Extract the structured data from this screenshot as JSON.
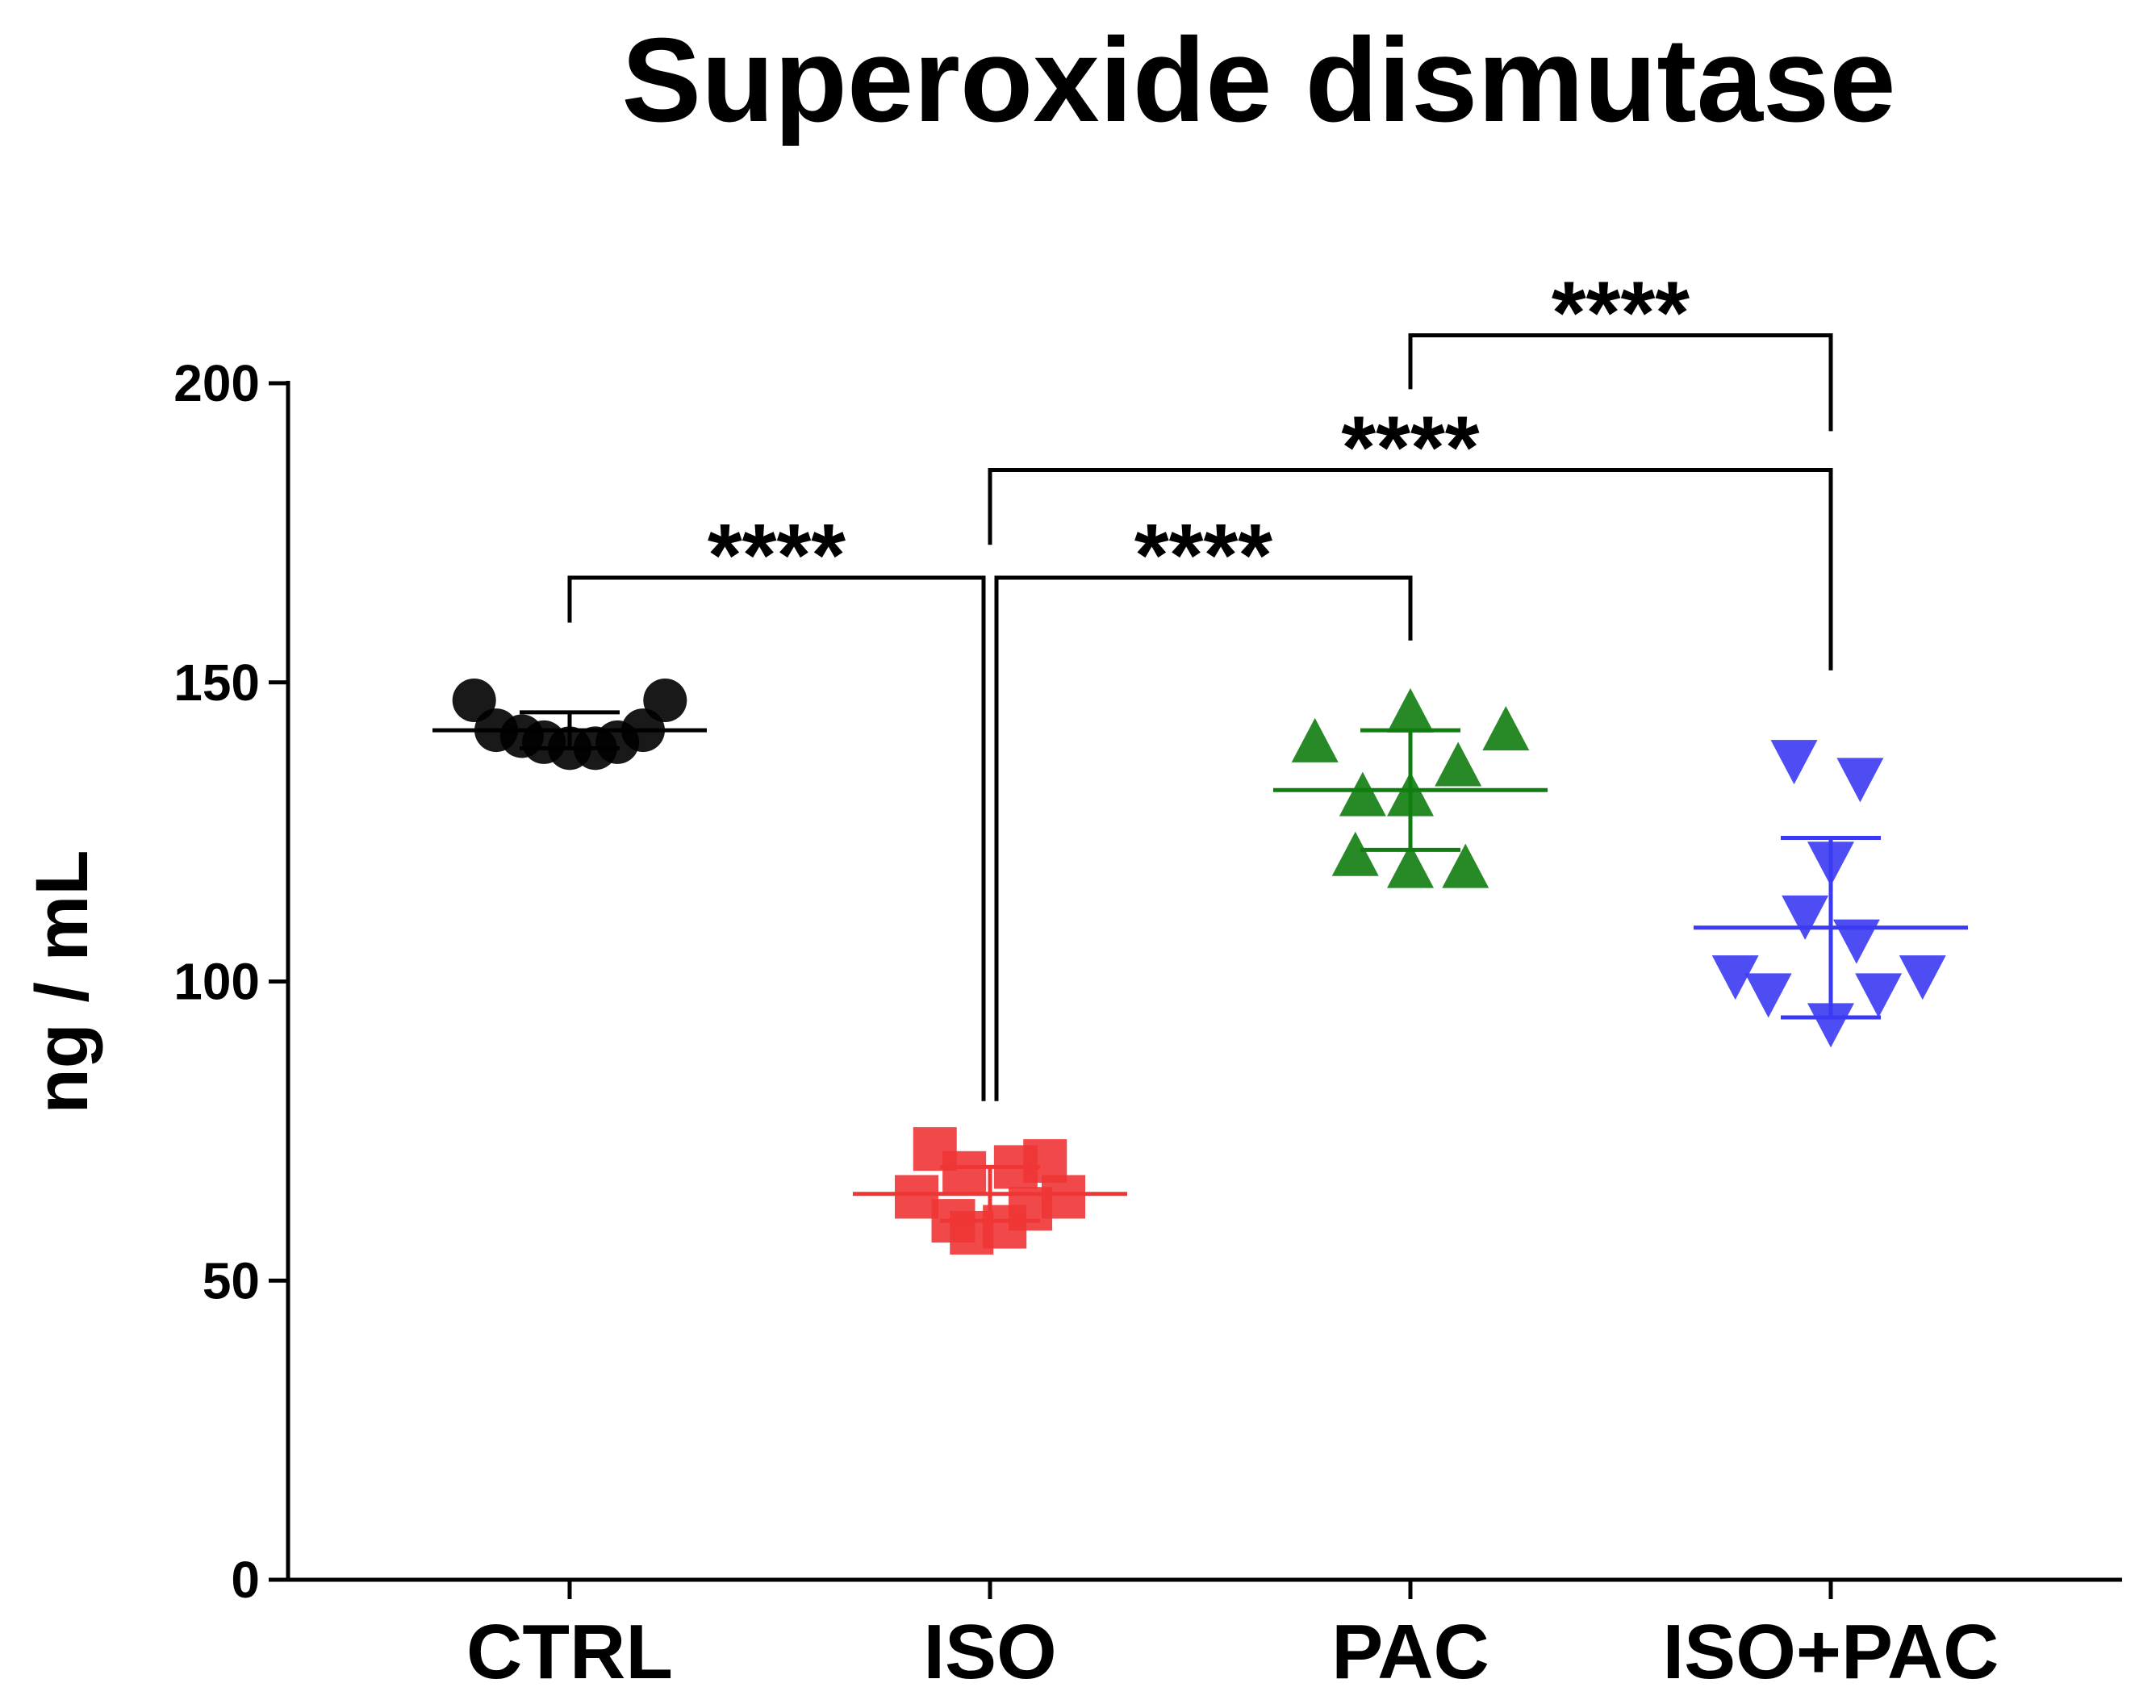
{
  "chart_data": {
    "type": "scatter",
    "title": "Superoxide dismutase",
    "xlabel": "",
    "ylabel": "ng / mL",
    "ylim": [
      0,
      200
    ],
    "yticks": [
      0,
      50,
      100,
      150,
      200
    ],
    "grid": false,
    "legend": "none",
    "categories": [
      "CTRL",
      "ISO",
      "PAC",
      "ISO+PAC"
    ],
    "series": [
      {
        "name": "CTRL",
        "color": "#000000",
        "marker": "circle",
        "values": [
          147,
          142,
          141,
          140,
          139,
          139,
          140,
          142,
          147
        ],
        "jitter": [
          -0.26,
          -0.2,
          -0.13,
          -0.07,
          0,
          0.07,
          0.13,
          0.2,
          0.26
        ],
        "mean": 142,
        "sd": 3
      },
      {
        "name": "ISO",
        "color": "#f03535",
        "marker": "square",
        "values": [
          72,
          64,
          68,
          60,
          58,
          59,
          62,
          69,
          70,
          64
        ],
        "jitter": [
          -0.15,
          -0.2,
          -0.07,
          -0.1,
          -0.05,
          0.04,
          0.11,
          0.07,
          0.15,
          0.2
        ],
        "mean": 64.5,
        "sd": 4.5
      },
      {
        "name": "PAC",
        "color": "#0f7d0f",
        "marker": "triangle-up",
        "values": [
          140,
          145,
          136,
          131,
          131,
          142,
          121,
          119,
          119
        ],
        "jitter": [
          -0.26,
          0,
          0.13,
          -0.13,
          0,
          0.26,
          -0.15,
          0,
          0.15
        ],
        "mean": 132,
        "sd": 10
      },
      {
        "name": "ISO+PAC",
        "color": "#3a3af2",
        "marker": "triangle-down",
        "values": [
          137,
          134,
          120,
          111,
          107,
          101,
          98,
          98,
          101,
          93
        ],
        "jitter": [
          -0.1,
          0.08,
          0,
          -0.07,
          0.07,
          -0.26,
          -0.17,
          0.13,
          0.25,
          0
        ],
        "mean": 109,
        "sd": 15
      }
    ],
    "annotations": [
      {
        "label": "****",
        "from": "CTRL",
        "to": "ISO",
        "bracket_y": 167.5,
        "left_leg_end": 160,
        "right_leg_end": 80
      },
      {
        "label": "****",
        "from": "ISO",
        "to": "PAC",
        "bracket_y": 167.5,
        "left_leg_end": 80,
        "right_leg_end": 157
      },
      {
        "label": "****",
        "from": "ISO",
        "to": "ISO+PAC",
        "bracket_y": 185.5,
        "left_leg_end": 173,
        "right_leg_end": 152
      },
      {
        "label": "****",
        "from": "PAC",
        "to": "ISO+PAC",
        "bracket_y": 208,
        "left_leg_end": 199,
        "right_leg_end": 192
      }
    ]
  }
}
